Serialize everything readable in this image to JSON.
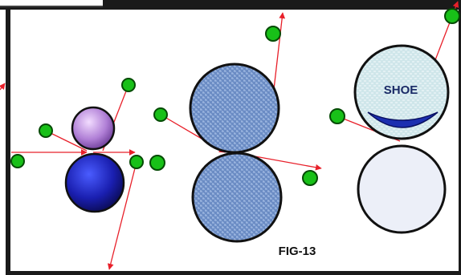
{
  "labels": {
    "shoe": "SHOE",
    "figure": "FIG-13"
  }
}
